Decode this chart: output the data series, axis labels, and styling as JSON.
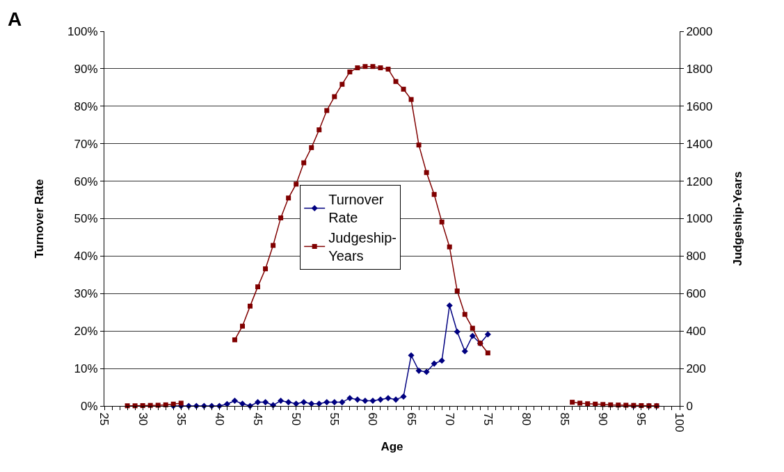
{
  "chart_data": {
    "type": "line",
    "annotations": [
      "A"
    ],
    "x": [
      28,
      29,
      30,
      31,
      32,
      33,
      34,
      35,
      36,
      37,
      38,
      39,
      40,
      41,
      42,
      43,
      44,
      45,
      46,
      47,
      48,
      49,
      50,
      51,
      52,
      53,
      54,
      55,
      56,
      57,
      58,
      59,
      60,
      61,
      62,
      63,
      64,
      65,
      66,
      67,
      68,
      69,
      70,
      71,
      72,
      73,
      74,
      75,
      76,
      77,
      78,
      79,
      80,
      81,
      82,
      83,
      84,
      85,
      86,
      87,
      88,
      89,
      90,
      91,
      92,
      93,
      94,
      95,
      96,
      97
    ],
    "series": [
      {
        "name": "Turnover Rate",
        "color": "#000080",
        "marker": "diamond",
        "values": [
          null,
          null,
          null,
          null,
          null,
          null,
          0,
          0,
          0,
          0,
          0,
          0,
          0,
          0.5,
          1.4,
          0.6,
          0,
          1.0,
          1.0,
          0.2,
          1.4,
          1.0,
          0.6,
          1.0,
          0.6,
          0.6,
          1.0,
          1.0,
          1.0,
          2.1,
          1.7,
          1.4,
          1.4,
          1.7,
          2.1,
          1.7,
          2.5,
          13.5,
          9.4,
          9.1,
          11.3,
          12.1,
          26.8,
          19.8,
          14.6,
          18.7,
          16.7,
          19.1,
          null,
          null,
          null,
          null,
          null,
          null,
          null,
          null,
          null,
          null,
          null,
          null,
          null,
          null,
          null,
          null,
          null,
          null,
          0,
          null,
          0,
          0
        ]
      },
      {
        "name": "Judgeship-Years",
        "color": "#800000",
        "marker": "square",
        "axis": "y2",
        "values": [
          1,
          1,
          2,
          3,
          4,
          6,
          10,
          15,
          null,
          null,
          null,
          null,
          null,
          null,
          353,
          426,
          533,
          636,
          732,
          857,
          1004,
          1110,
          1184,
          1298,
          1379,
          1474,
          1577,
          1651,
          1717,
          1783,
          1805,
          1812,
          1812,
          1805,
          1798,
          1732,
          1691,
          1636,
          1393,
          1246,
          1129,
          982,
          849,
          614,
          489,
          415,
          335,
          283,
          null,
          null,
          null,
          null,
          null,
          null,
          null,
          null,
          null,
          null,
          20,
          15,
          12,
          10,
          8,
          6,
          5,
          4,
          3,
          2,
          1,
          1
        ]
      }
    ],
    "xlabel": "Age",
    "ylabel": "Turnover Rate",
    "y2label": "Judgeship-Years",
    "xlim": [
      25,
      100
    ],
    "xticks": [
      25,
      30,
      35,
      40,
      45,
      50,
      55,
      60,
      65,
      70,
      75,
      80,
      85,
      90,
      95,
      100
    ],
    "ylim": [
      0,
      100
    ],
    "yticks": [
      {
        "value": 0,
        "label": "0%"
      },
      {
        "value": 10,
        "label": "10%"
      },
      {
        "value": 20,
        "label": "20%"
      },
      {
        "value": 30,
        "label": "30%"
      },
      {
        "value": 40,
        "label": "40%"
      },
      {
        "value": 50,
        "label": "50%"
      },
      {
        "value": 60,
        "label": "60%"
      },
      {
        "value": 70,
        "label": "70%"
      },
      {
        "value": 80,
        "label": "80%"
      },
      {
        "value": 90,
        "label": "90%"
      },
      {
        "value": 100,
        "label": "100%"
      }
    ],
    "y2lim": [
      0,
      2000
    ],
    "y2ticks": [
      0,
      200,
      400,
      600,
      800,
      1000,
      1200,
      1400,
      1600,
      1800,
      2000
    ],
    "grid": "y",
    "legend": "center"
  }
}
